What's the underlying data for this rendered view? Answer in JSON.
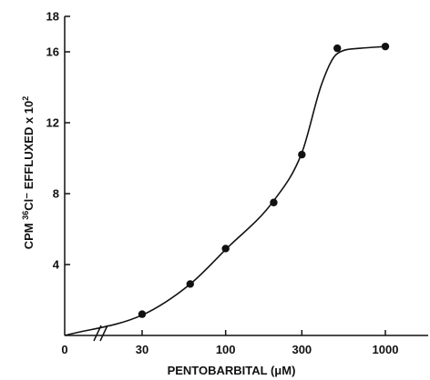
{
  "chart_data": {
    "type": "scatter",
    "title": "",
    "xlabel": "PENTOBARBITAL (μM)",
    "ylabel_parts": {
      "pre": "CPM ",
      "sup1": "36",
      "mid": "Cl⁻ EFFLUXED x 10",
      "sup2": "2"
    },
    "x_scale": "log",
    "x_axis_break": true,
    "xlim": [
      22,
      1800
    ],
    "ylim": [
      0,
      18
    ],
    "x_ticks": [
      {
        "value": 0,
        "label": "0",
        "at_origin": true
      },
      {
        "value": 30,
        "label": "30"
      },
      {
        "value": 100,
        "label": "100"
      },
      {
        "value": 300,
        "label": "300"
      },
      {
        "value": 1000,
        "label": "1000"
      }
    ],
    "y_ticks": [
      {
        "value": 4,
        "label": "4"
      },
      {
        "value": 8,
        "label": "8"
      },
      {
        "value": 12,
        "label": "12"
      },
      {
        "value": 16,
        "label": "16"
      },
      {
        "value": 18,
        "label": "18"
      }
    ],
    "series": [
      {
        "points": [
          {
            "x": 30,
            "y": 1.2
          },
          {
            "x": 60,
            "y": 2.9
          },
          {
            "x": 100,
            "y": 4.9
          },
          {
            "x": 200,
            "y": 7.5
          },
          {
            "x": 300,
            "y": 10.2
          },
          {
            "x": 500,
            "y": 16.2
          },
          {
            "x": 1000,
            "y": 16.3
          }
        ]
      }
    ],
    "fitted_curve": [
      {
        "x": 0,
        "y": 0
      },
      {
        "x": 30,
        "y": 1.15
      },
      {
        "x": 60,
        "y": 2.9
      },
      {
        "x": 100,
        "y": 4.85
      },
      {
        "x": 200,
        "y": 7.6
      },
      {
        "x": 300,
        "y": 10.3
      },
      {
        "x": 400,
        "y": 14.2
      },
      {
        "x": 500,
        "y": 15.9
      },
      {
        "x": 700,
        "y": 16.2
      },
      {
        "x": 1000,
        "y": 16.3
      }
    ],
    "grid": false,
    "colors": {
      "ink": "#111111",
      "background": "#ffffff"
    }
  }
}
